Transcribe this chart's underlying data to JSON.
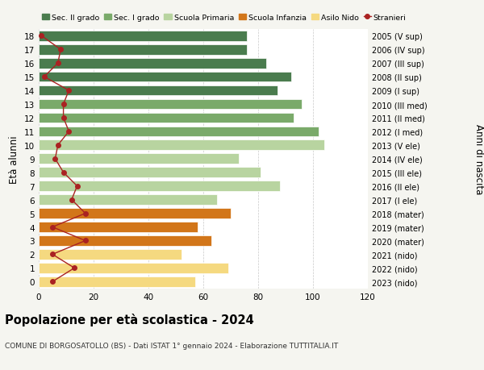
{
  "ages": [
    18,
    17,
    16,
    15,
    14,
    13,
    12,
    11,
    10,
    9,
    8,
    7,
    6,
    5,
    4,
    3,
    2,
    1,
    0
  ],
  "right_labels": [
    "2005 (V sup)",
    "2006 (IV sup)",
    "2007 (III sup)",
    "2008 (II sup)",
    "2009 (I sup)",
    "2010 (III med)",
    "2011 (II med)",
    "2012 (I med)",
    "2013 (V ele)",
    "2014 (IV ele)",
    "2015 (III ele)",
    "2016 (II ele)",
    "2017 (I ele)",
    "2018 (mater)",
    "2019 (mater)",
    "2020 (mater)",
    "2021 (nido)",
    "2022 (nido)",
    "2023 (nido)"
  ],
  "bar_values": [
    76,
    76,
    83,
    92,
    87,
    96,
    93,
    102,
    104,
    73,
    81,
    88,
    65,
    70,
    58,
    63,
    52,
    69,
    57
  ],
  "stranieri": [
    1,
    8,
    7,
    2,
    11,
    9,
    9,
    11,
    7,
    6,
    9,
    14,
    12,
    17,
    5,
    17,
    5,
    13,
    5
  ],
  "bar_colors": [
    "#4a7c4e",
    "#4a7c4e",
    "#4a7c4e",
    "#4a7c4e",
    "#4a7c4e",
    "#7aaa6a",
    "#7aaa6a",
    "#7aaa6a",
    "#b8d4a0",
    "#b8d4a0",
    "#b8d4a0",
    "#b8d4a0",
    "#b8d4a0",
    "#d2761a",
    "#d2761a",
    "#d2761a",
    "#f5d980",
    "#f5d980",
    "#f5d980"
  ],
  "legend_labels": [
    "Sec. II grado",
    "Sec. I grado",
    "Scuola Primaria",
    "Scuola Infanzia",
    "Asilo Nido",
    "Stranieri"
  ],
  "legend_colors": [
    "#4a7c4e",
    "#7aaa6a",
    "#b8d4a0",
    "#d2761a",
    "#f5d980",
    "#aa2222"
  ],
  "title": "Popolazione per età scolastica - 2024",
  "subtitle": "COMUNE DI BORGOSATOLLO (BS) - Dati ISTAT 1° gennaio 2024 - Elaborazione TUTTITALIA.IT",
  "ylabel_left": "Età alunni",
  "ylabel_right": "Anni di nascita",
  "xlim": [
    0,
    120
  ],
  "xticks": [
    0,
    20,
    40,
    60,
    80,
    100,
    120
  ],
  "background_color": "#f5f5f0",
  "bar_background": "#ffffff",
  "stranieri_color": "#aa2222"
}
